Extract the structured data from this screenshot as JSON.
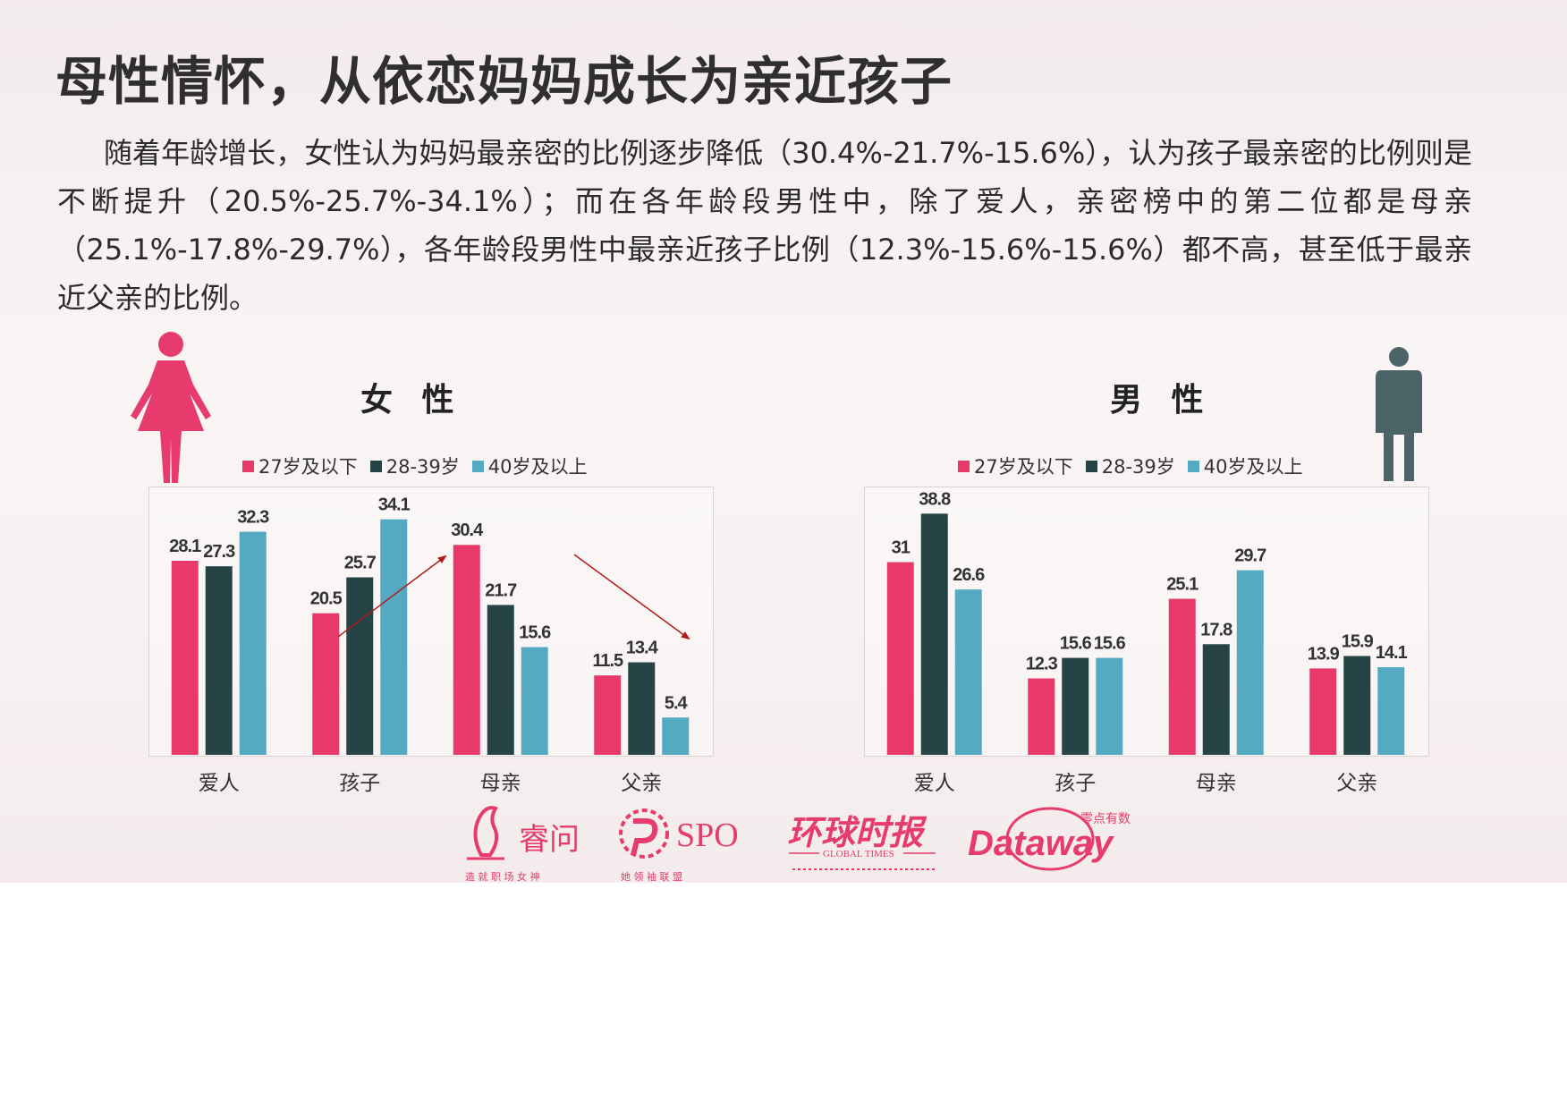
{
  "title": "母性情怀，从依恋妈妈成长为亲近孩子",
  "description": "随着年龄增长，女性认为妈妈最亲密的比例逐步降低（30.4%-21.7%-15.6%），认为孩子最亲密的比例则是不断提升（20.5%-25.7%-34.1%）；而在各年龄段男性中，除了爱人，亲密榜中的第二位都是母亲（25.1%-17.8%-29.7%），各年龄段男性中最亲近孩子比例（12.3%-15.6%-15.6%）都不高，甚至低于最亲近父亲的比例。",
  "colors": {
    "series1": "#e83a6a",
    "series2": "#264346",
    "series3": "#56a9c2",
    "female_icon": "#e73b6d",
    "male_icon": "#4c6367",
    "arrow": "#b21a1a"
  },
  "chart_data": [
    {
      "type": "bar",
      "title": "女 性",
      "categories": [
        "爱人",
        "孩子",
        "母亲",
        "父亲"
      ],
      "series": [
        {
          "name": "27岁及以下",
          "values": [
            28.1,
            20.5,
            30.4,
            11.5
          ]
        },
        {
          "name": "28-39岁",
          "values": [
            27.3,
            25.7,
            21.7,
            13.4
          ]
        },
        {
          "name": "40岁及以上",
          "values": [
            32.3,
            34.1,
            15.6,
            5.4
          ]
        }
      ],
      "legend": "top",
      "grid": false,
      "annotations": [
        "increasing arrow over 孩子",
        "decreasing arrow over 母亲-父亲"
      ]
    },
    {
      "type": "bar",
      "title": "男 性",
      "categories": [
        "爱人",
        "孩子",
        "母亲",
        "父亲"
      ],
      "series": [
        {
          "name": "27岁及以下",
          "values": [
            31,
            12.3,
            25.1,
            13.9
          ]
        },
        {
          "name": "28-39岁",
          "values": [
            38.8,
            15.6,
            17.8,
            15.9
          ]
        },
        {
          "name": "40岁及以上",
          "values": [
            26.6,
            15.6,
            29.7,
            14.1
          ]
        }
      ],
      "legend": "top",
      "grid": false
    }
  ],
  "logos": {
    "ruiwen": {
      "name": "睿问",
      "tagline": "造 就 职 场 女 神"
    },
    "spo": {
      "name": "SPO",
      "tagline": "她 领 袖 联 盟"
    },
    "globaltimes": {
      "name": "环球时报",
      "sub": "GLOBAL TIMES"
    },
    "dataway": {
      "name": "Dataway",
      "sub": "零点有数"
    }
  }
}
